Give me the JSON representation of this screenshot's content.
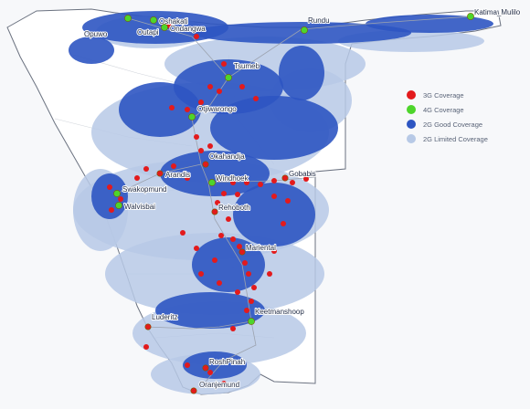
{
  "map": {
    "colors": {
      "background": "#f7f8fa",
      "country_fill": "#ffffff",
      "border": "#6b7280",
      "road": "#9ca3af",
      "coverage_3g": "#e31a1c",
      "coverage_4g": "#4dd52b",
      "coverage_2g_good": "#2d55c2",
      "coverage_2g_limited": "#b7c9e6"
    },
    "legend": [
      {
        "key": "coverage_3g",
        "label": "3G Coverage"
      },
      {
        "key": "coverage_4g",
        "label": "4G Coverage"
      },
      {
        "key": "coverage_2g_good",
        "label": "2G Good Coverage"
      },
      {
        "key": "coverage_2g_limited",
        "label": "2G Limited Coverage"
      }
    ],
    "places": [
      {
        "id": "outapi",
        "label": "Outapi",
        "site": "4g"
      },
      {
        "id": "oshakati",
        "label": "Oshakati",
        "site": "4g"
      },
      {
        "id": "ondangwa",
        "label": "Ondangwa",
        "site": "4g"
      },
      {
        "id": "opuwo",
        "label": "Opuwo",
        "site": "none"
      },
      {
        "id": "rundu",
        "label": "Rundu",
        "site": "4g"
      },
      {
        "id": "katima-mulilo",
        "label": "Katima_Mulilo",
        "site": "4g"
      },
      {
        "id": "tsumeb",
        "label": "Tsumeb",
        "site": "4g"
      },
      {
        "id": "otjiwarongo",
        "label": "Otjiwarongo",
        "site": "4g"
      },
      {
        "id": "okahandja",
        "label": "Okahandja",
        "site": "3g"
      },
      {
        "id": "arandis",
        "label": "Arandis",
        "site": "3g"
      },
      {
        "id": "swakopmund",
        "label": "Swakopmund",
        "site": "4g"
      },
      {
        "id": "walvis-bay",
        "label": "Walvisbai",
        "site": "4g"
      },
      {
        "id": "windhoek",
        "label": "Windhoek",
        "site": "4g"
      },
      {
        "id": "gobabis",
        "label": "Gobabis",
        "site": "3g"
      },
      {
        "id": "rehoboth",
        "label": "Rehoboth",
        "site": "3g"
      },
      {
        "id": "mariental",
        "label": "Mariental",
        "site": "3g"
      },
      {
        "id": "keetmanshoop",
        "label": "Keetmanshoop",
        "site": "4g"
      },
      {
        "id": "luderitz",
        "label": "Luderitz",
        "site": "3g"
      },
      {
        "id": "rosh-pinah",
        "label": "RoshPinah",
        "site": "3g"
      },
      {
        "id": "oranjemund",
        "label": "Oranjemund",
        "site": "3g"
      }
    ]
  }
}
